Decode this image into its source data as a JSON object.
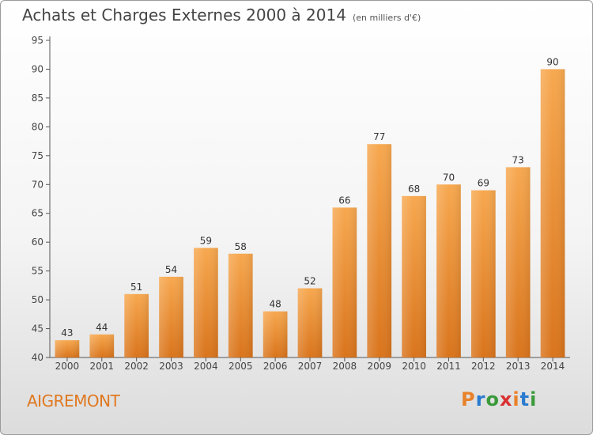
{
  "header": {
    "title": "Achats et Charges Externes 2000 à 2014",
    "subtitle": "(en milliers d'€)"
  },
  "footer": {
    "commune": "AIGREMONT",
    "logo_letters": [
      "P",
      "r",
      "o",
      "x",
      "i",
      "t",
      "i"
    ],
    "logo_colors": [
      "#e8822a",
      "#2a7bd0",
      "#3a9a3a",
      "#d93030",
      "#e8822a",
      "#2a7bd0",
      "#3a9a3a"
    ]
  },
  "chart_data": {
    "type": "bar",
    "title": "Achats et Charges Externes 2000 à 2014",
    "subtitle": "(en milliers d'€)",
    "categories": [
      "2000",
      "2001",
      "2002",
      "2003",
      "2004",
      "2005",
      "2006",
      "2007",
      "2008",
      "2009",
      "2010",
      "2011",
      "2012",
      "2013",
      "2014"
    ],
    "values": [
      43,
      44,
      51,
      54,
      59,
      58,
      48,
      52,
      66,
      77,
      68,
      70,
      69,
      73,
      90
    ],
    "ylim": [
      40,
      95
    ],
    "yticks": [
      40,
      45,
      50,
      55,
      60,
      65,
      70,
      75,
      80,
      85,
      90,
      95
    ],
    "grid": false,
    "bar_color_top": "#f7a84f",
    "bar_color_bottom": "#d9741c"
  }
}
